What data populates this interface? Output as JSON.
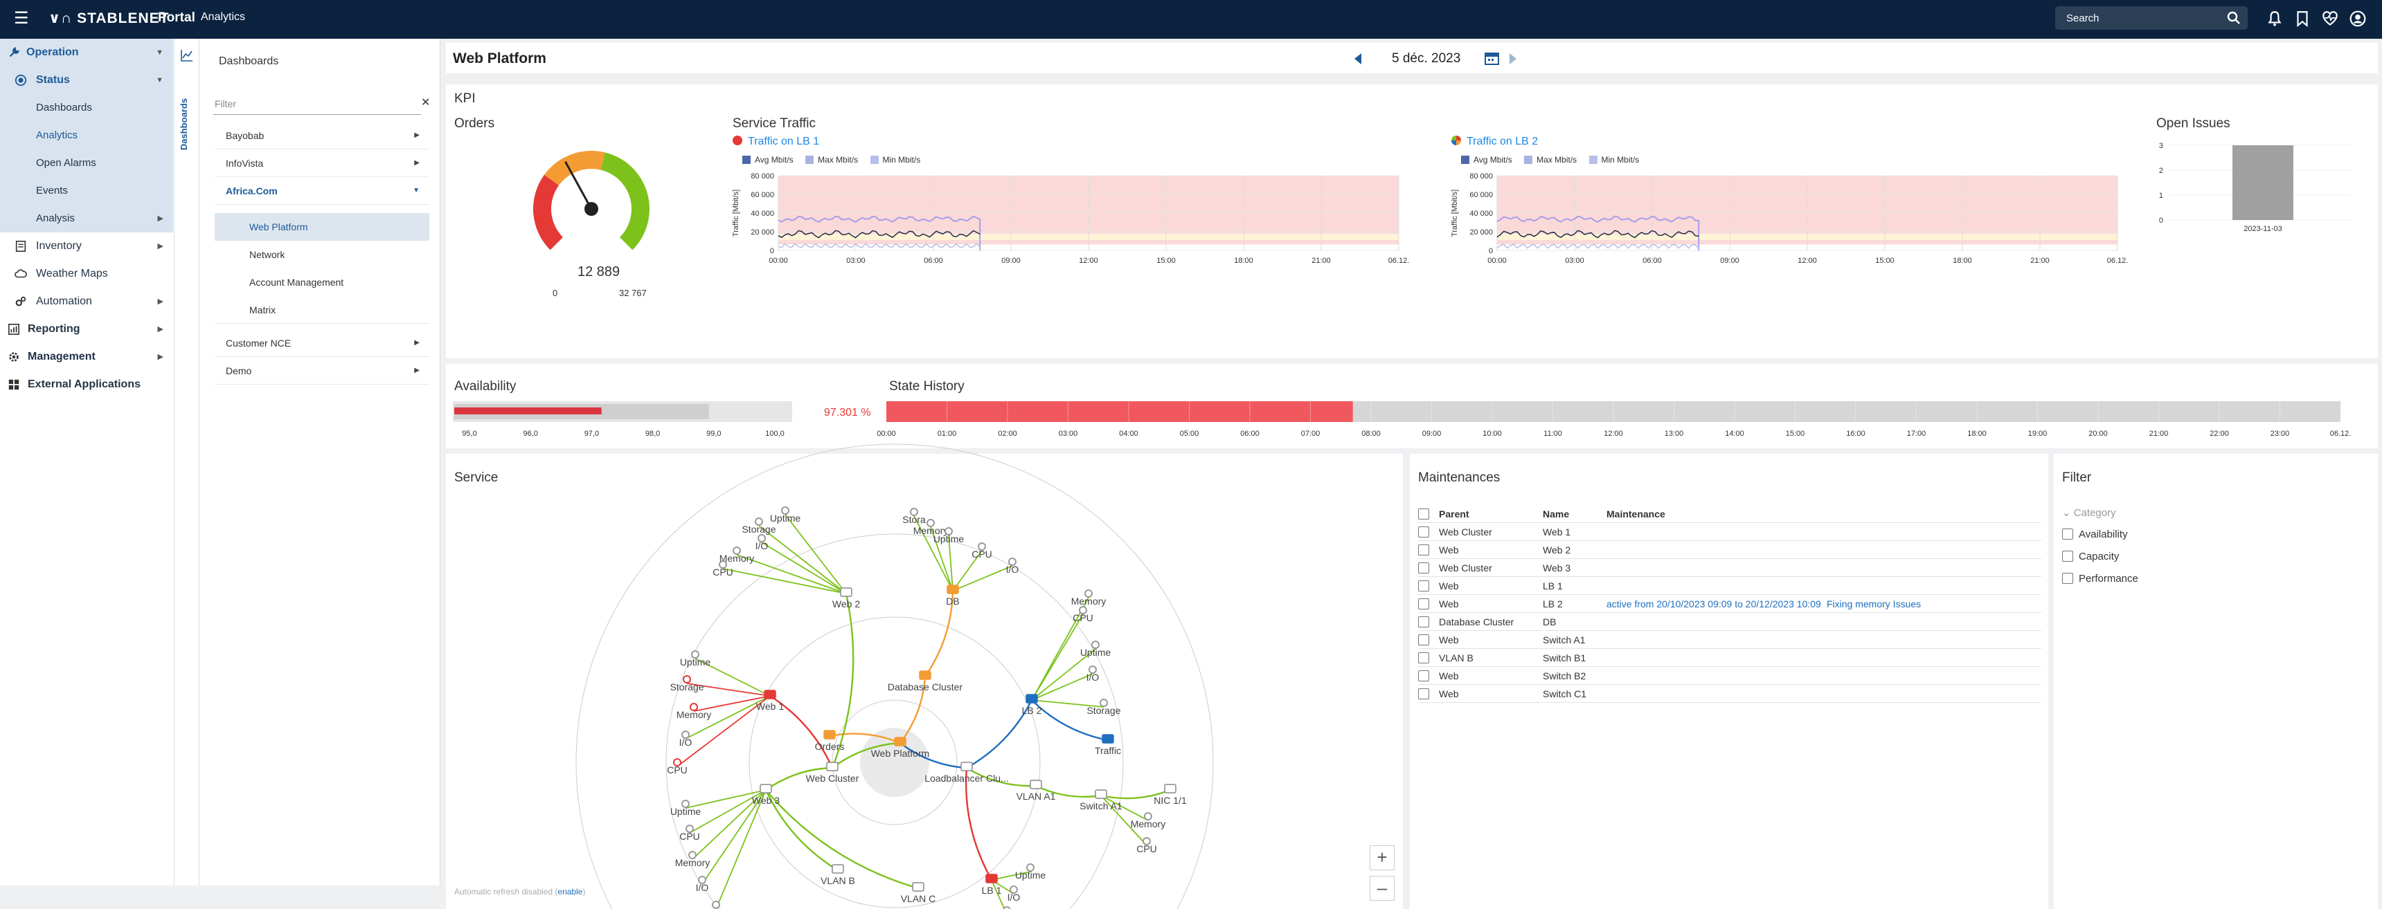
{
  "topbar": {
    "brand": "STABLENET",
    "portal": "Portal",
    "breadcrumb": "Analytics",
    "search_placeholder": "Search"
  },
  "sidebar": {
    "items": [
      {
        "label": "Operation"
      },
      {
        "label": "Status"
      },
      {
        "label": "Dashboards"
      },
      {
        "label": "Analytics"
      },
      {
        "label": "Open Alarms"
      },
      {
        "label": "Events"
      },
      {
        "label": "Analysis"
      },
      {
        "label": "Inventory"
      },
      {
        "label": "Weather Maps"
      },
      {
        "label": "Automation"
      },
      {
        "label": "Reporting"
      },
      {
        "label": "Management"
      },
      {
        "label": "External Applications"
      }
    ]
  },
  "vertical_tab": "Dashboards",
  "dashboards": {
    "title": "Dashboards",
    "filter_placeholder": "Filter",
    "items": [
      "Bayobab",
      "InfoVista",
      "Africa.Com",
      "Web Platform",
      "Network",
      "Account Management",
      "Matrix",
      "Customer NCE",
      "Demo"
    ]
  },
  "header": {
    "title": "Web Platform",
    "date": "5 déc. 2023"
  },
  "kpi": {
    "section": "KPI",
    "orders": {
      "title": "Orders",
      "value": "12 889",
      "value_num": 12889,
      "min": "0",
      "max": "32 767",
      "max_num": 32767
    },
    "service_traffic": {
      "title": "Service Traffic",
      "lb1": "Traffic on LB 1",
      "lb2": "Traffic on LB 2",
      "legend": [
        "Avg Mbit/s",
        "Max Mbit/s",
        "Min Mbit/s"
      ],
      "ylabel": "Traffic [Mbit/s]",
      "yticks": [
        "80 000",
        "60 000",
        "40 000",
        "20 000",
        "0"
      ],
      "xticks": [
        "00:00",
        "03:00",
        "06:00",
        "09:00",
        "12:00",
        "15:00",
        "18:00",
        "21:00",
        "06.12."
      ]
    },
    "open_issues": {
      "title": "Open Issues",
      "yticks": [
        "3",
        "2",
        "1",
        "0"
      ],
      "category": "2023-11-03",
      "value": 3
    }
  },
  "availability": {
    "title": "Availability",
    "value": "97.301 %",
    "value_num": 97.301,
    "ticks": [
      "95,0",
      "96,0",
      "97,0",
      "98,0",
      "99,0",
      "100,0"
    ]
  },
  "state_history": {
    "title": "State History",
    "ticks": [
      "00:00",
      "01:00",
      "02:00",
      "03:00",
      "04:00",
      "05:00",
      "06:00",
      "07:00",
      "08:00",
      "09:00",
      "10:00",
      "11:00",
      "12:00",
      "13:00",
      "14:00",
      "15:00",
      "16:00",
      "17:00",
      "18:00",
      "19:00",
      "20:00",
      "21:00",
      "22:00",
      "23:00",
      "06.12."
    ],
    "red_until_hours": 7.7
  },
  "service": {
    "title": "Service",
    "refresh_text": "Automatic refresh disabled (",
    "refresh_link": "enable",
    "refresh_end": ")",
    "nodes": {
      "web_platform": "Web Platform",
      "orders": "Orders",
      "web_cluster": "Web Cluster",
      "database_cluster": "Database Cluster",
      "lb_cluster": "Loadbalancer Clu...",
      "web1": "Web 1",
      "web2": "Web 2",
      "web3": "Web 3",
      "db": "DB",
      "lb1": "LB 1",
      "lb2": "LB 2",
      "vlana1": "VLAN A1",
      "vlanb": "VLAN B",
      "vlanc": "VLAN C",
      "switch_a1": "Switch A1",
      "traffic": "Traffic",
      "nic": "NIC 1/1",
      "uptime": "Uptime",
      "storage": "Storage",
      "memory": "Memory",
      "io": "I/O",
      "cpu": "CPU",
      "stora": "Stora"
    }
  },
  "maintenances": {
    "title": "Maintenances",
    "headers": [
      "Parent",
      "Name",
      "Maintenance"
    ],
    "rows": [
      {
        "parent": "Web Cluster",
        "name": "Web 1",
        "maint": "",
        "note": ""
      },
      {
        "parent": "Web",
        "name": "Web 2",
        "maint": "",
        "note": ""
      },
      {
        "parent": "Web Cluster",
        "name": "Web 3",
        "maint": "",
        "note": ""
      },
      {
        "parent": "Web",
        "name": "LB 1",
        "maint": "",
        "note": ""
      },
      {
        "parent": "Web",
        "name": "LB 2",
        "maint": "active from 20/10/2023 09:09 to 20/12/2023 10:09",
        "note": "Fixing memory Issues"
      },
      {
        "parent": "Database Cluster",
        "name": "DB",
        "maint": "",
        "note": ""
      },
      {
        "parent": "Web",
        "name": "Switch A1",
        "maint": "",
        "note": ""
      },
      {
        "parent": "VLAN B",
        "name": "Switch B1",
        "maint": "",
        "note": ""
      },
      {
        "parent": "Web",
        "name": "Switch B2",
        "maint": "",
        "note": ""
      },
      {
        "parent": "Web",
        "name": "Switch C1",
        "maint": "",
        "note": ""
      }
    ]
  },
  "filter": {
    "title": "Filter",
    "category": "Category",
    "options": [
      "Availability",
      "Capacity",
      "Performance"
    ]
  },
  "colors": {
    "navy": "#0c2340",
    "accent": "#1d5a99",
    "red": "#e53935",
    "green": "#7cc21b",
    "orange": "#f39c34",
    "blue": "#1e6fc0"
  }
}
